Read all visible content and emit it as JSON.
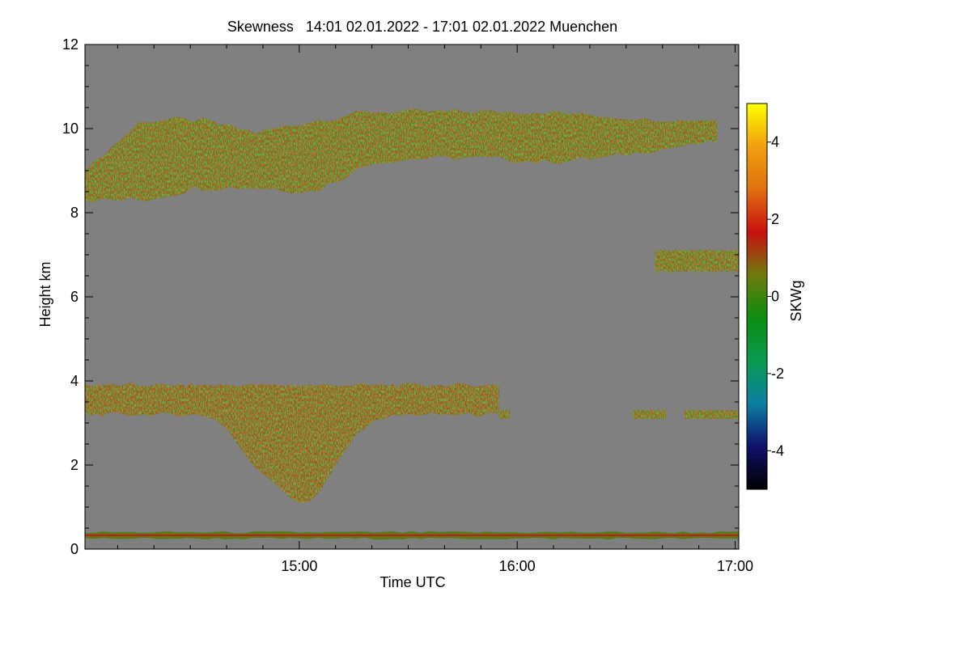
{
  "chart_data": {
    "type": "heatmap",
    "title": "Skewness   14:01 02.01.2022 - 17:01 02.01.2022 Muenchen",
    "xlabel": "Time UTC",
    "ylabel": "Height km",
    "xlim": [
      "14:01",
      "17:01"
    ],
    "ylim": [
      0,
      12
    ],
    "x_ticks": [
      "15:00",
      "16:00",
      "17:00"
    ],
    "y_ticks": [
      0,
      2,
      4,
      6,
      8,
      10,
      12
    ],
    "colorbar": {
      "label": "SKWg",
      "range": [
        -5,
        5
      ],
      "ticks": [
        -4,
        -2,
        0,
        2,
        4
      ],
      "colors": [
        "#000000",
        "#10106a",
        "#0b7fa0",
        "#0a9a50",
        "#0b8c10",
        "#6f7a10",
        "#c81010",
        "#e07010",
        "#f0a010",
        "#ffff00"
      ]
    },
    "background_color": "#808080",
    "layers": [
      {
        "name": "cirrus layer",
        "time_start": "14:01",
        "time_end": "16:55",
        "height_bottom_km": [
          8.3,
          8.3,
          8.6,
          8.6,
          8.5,
          9.2,
          9.3,
          9.3,
          9.2,
          9.3,
          9.5,
          9.7
        ],
        "height_top_km": [
          9.0,
          10.2,
          10.2,
          9.9,
          10.2,
          10.4,
          10.4,
          10.4,
          10.4,
          10.3,
          10.2,
          10.2
        ]
      },
      {
        "name": "mid-level layer",
        "time_start": "16:38",
        "time_end": "17:01",
        "height_bottom_km": 6.6,
        "height_top_km": 7.1
      },
      {
        "name": "low cloud layer",
        "time_start": "14:01",
        "time_end": "15:55",
        "height_bottom_km": 3.2,
        "height_top_km": 3.9,
        "fallstreak_min_km": 1.1,
        "fallstreak_time": "15:01"
      },
      {
        "name": "surface layer",
        "time_start": "14:01",
        "time_end": "17:01",
        "height_bottom_km": 0.25,
        "height_top_km": 0.4
      }
    ]
  }
}
